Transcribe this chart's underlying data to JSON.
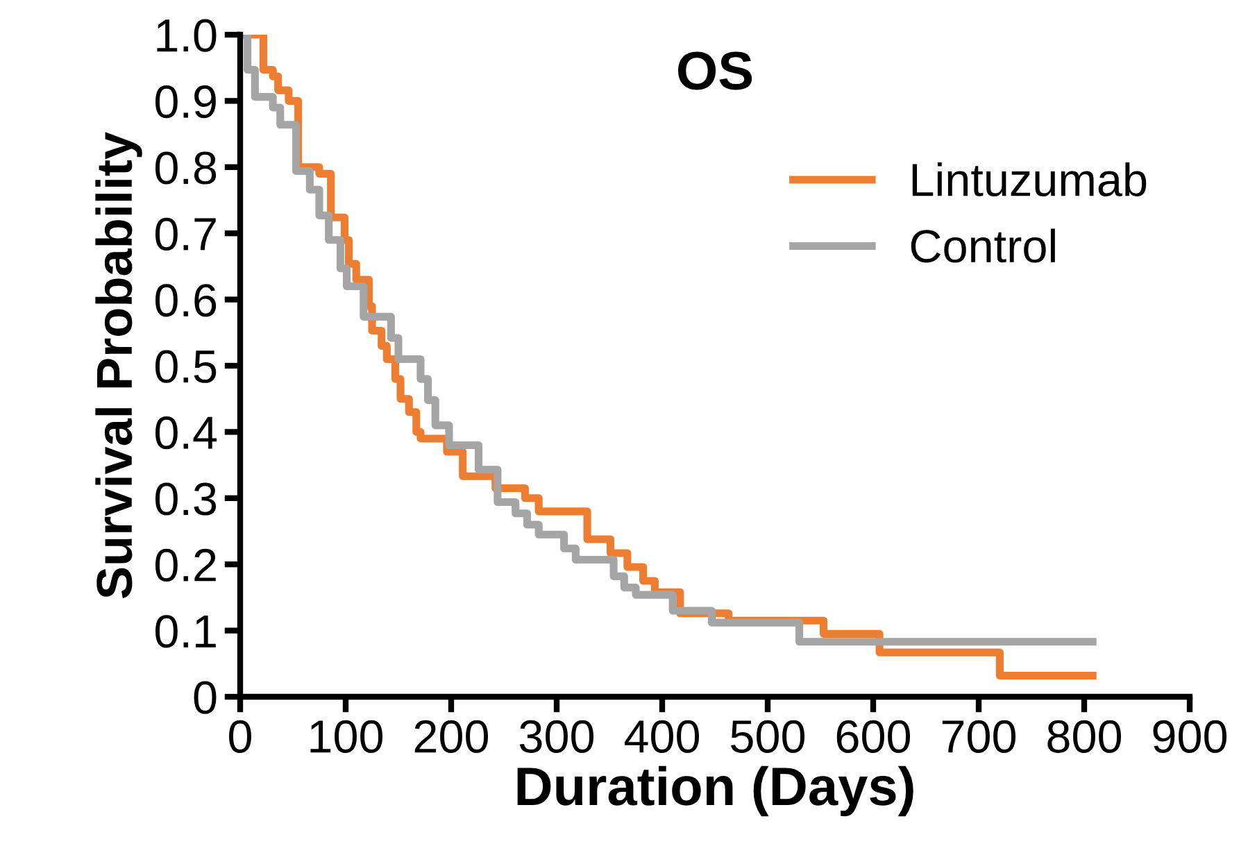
{
  "chart_data": {
    "type": "step",
    "title": "OS",
    "xlabel": "Duration (Days)",
    "ylabel": "Survival Probability",
    "series": [
      {
        "name": "Lintuzumab",
        "color": "#ed7d31",
        "x": [
          0,
          22,
          31,
          36,
          46,
          55,
          75,
          86,
          99,
          103,
          110,
          122,
          125,
          134,
          139,
          147,
          152,
          160,
          167,
          171,
          196,
          211,
          242,
          270,
          283,
          329,
          351,
          367,
          382,
          393,
          417,
          463,
          553,
          606,
          720,
          808
        ],
        "values": [
          1.0,
          0.947,
          0.937,
          0.916,
          0.9,
          0.8,
          0.79,
          0.724,
          0.69,
          0.654,
          0.63,
          0.59,
          0.553,
          0.53,
          0.51,
          0.48,
          0.45,
          0.43,
          0.4,
          0.39,
          0.37,
          0.333,
          0.315,
          0.3,
          0.28,
          0.238,
          0.217,
          0.196,
          0.175,
          0.158,
          0.126,
          0.115,
          0.095,
          0.067,
          0.032,
          0.032
        ]
      },
      {
        "name": "Control",
        "color": "#a5a5a5",
        "x": [
          0,
          7,
          14,
          31,
          38,
          53,
          66,
          75,
          84,
          95,
          101,
          117,
          143,
          150,
          171,
          178,
          185,
          198,
          226,
          244,
          261,
          272,
          283,
          307,
          318,
          354,
          364,
          375,
          410,
          447,
          530,
          808
        ],
        "values": [
          1.0,
          0.947,
          0.906,
          0.89,
          0.864,
          0.794,
          0.766,
          0.727,
          0.69,
          0.647,
          0.62,
          0.574,
          0.542,
          0.51,
          0.48,
          0.448,
          0.41,
          0.38,
          0.343,
          0.294,
          0.277,
          0.26,
          0.245,
          0.224,
          0.207,
          0.182,
          0.165,
          0.154,
          0.13,
          0.112,
          0.083,
          0.083
        ]
      }
    ],
    "xlim": [
      0,
      900
    ],
    "xticks": [
      0,
      100,
      200,
      300,
      400,
      500,
      600,
      700,
      800,
      900
    ],
    "ylim": [
      0,
      1
    ],
    "yticks": [
      0,
      0.1,
      0.2,
      0.3,
      0.4,
      0.5,
      0.6,
      0.7,
      0.8,
      0.9,
      {
        "value": 1,
        "label": "1.0"
      }
    ],
    "grid": false,
    "legend": "top right"
  }
}
